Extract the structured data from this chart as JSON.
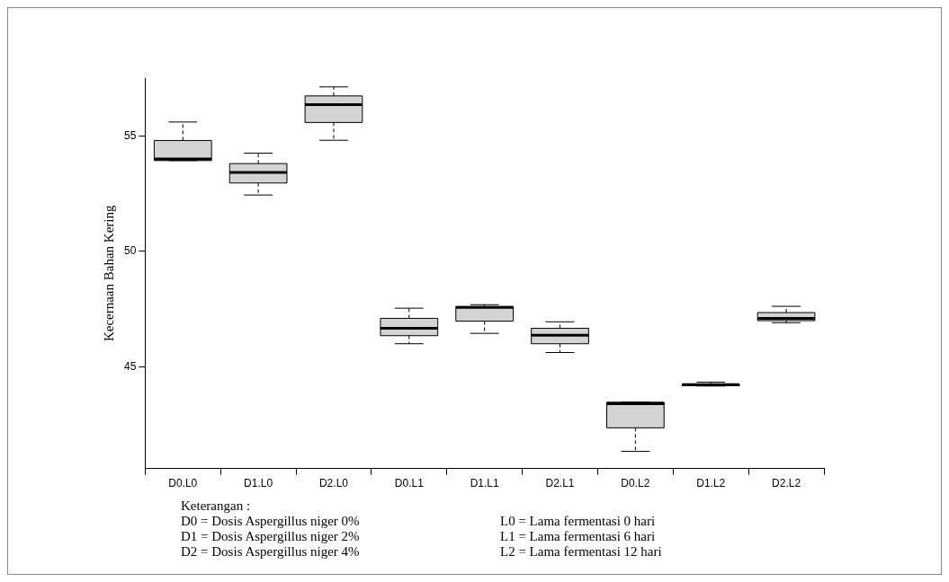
{
  "chart_data": {
    "type": "box",
    "ylabel": "Kecernaan Bahan Kering",
    "categories": [
      "D0.L0",
      "D1.L0",
      "D2.L0",
      "D0.L1",
      "D1.L1",
      "D2.L1",
      "D0.L2",
      "D1.L2",
      "D2.L2"
    ],
    "boxes": [
      {
        "low": 53.93,
        "q1": 53.93,
        "median": 54.0,
        "q3": 54.8,
        "high": 55.6
      },
      {
        "low": 52.44,
        "q1": 52.96,
        "median": 53.42,
        "q3": 53.8,
        "high": 54.25
      },
      {
        "low": 54.81,
        "q1": 55.58,
        "median": 56.35,
        "q3": 56.73,
        "high": 57.12
      },
      {
        "low": 46.0,
        "q1": 46.35,
        "median": 46.67,
        "q3": 47.1,
        "high": 47.54
      },
      {
        "low": 46.45,
        "q1": 46.98,
        "median": 47.57,
        "q3": 47.61,
        "high": 47.69
      },
      {
        "low": 45.62,
        "q1": 46.0,
        "median": 46.37,
        "q3": 46.67,
        "high": 46.95
      },
      {
        "low": 41.34,
        "q1": 42.36,
        "median": 43.4,
        "q3": 43.47,
        "high": 43.47
      },
      {
        "low": 44.17,
        "q1": 44.18,
        "median": 44.23,
        "q3": 44.23,
        "high": 44.34
      },
      {
        "low": 46.91,
        "q1": 47.0,
        "median": 47.1,
        "q3": 47.35,
        "high": 47.62
      }
    ],
    "color": "#d3d3d3",
    "ylim": [
      40.6,
      57.5
    ],
    "yticks": [
      45,
      50,
      55
    ],
    "grid": false,
    "annotations": [
      "Keterangan :",
      "D0 = Dosis Aspergillus niger 0%",
      "L0 = Lama fermentasi 0 hari",
      "D1 = Dosis Aspergillus niger 2%",
      "L1 = Lama fermentasi 6 hari",
      "D2 = Dosis Aspergillus niger 4%",
      "L2 = Lama fermentasi 12 hari"
    ]
  }
}
